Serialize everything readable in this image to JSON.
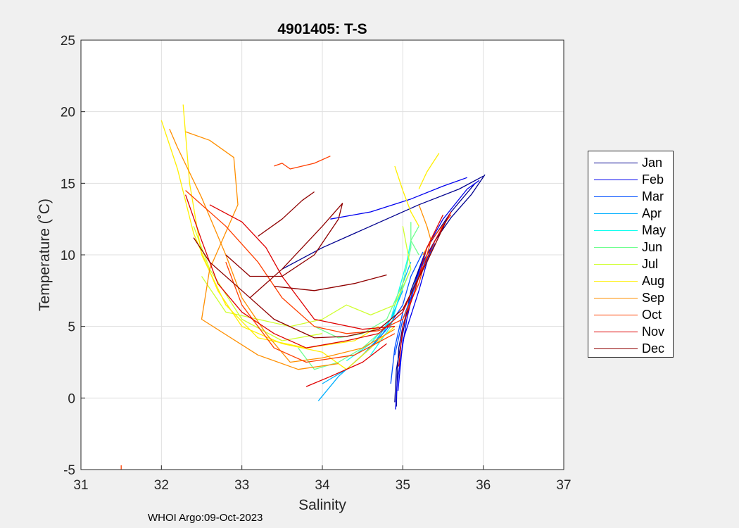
{
  "chart_data": {
    "type": "line",
    "title": "4901405:  T-S",
    "xlabel": "Salinity",
    "ylabel": "Temperature (˚C)",
    "xlim": [
      31,
      37
    ],
    "ylim": [
      -5,
      25
    ],
    "xticks": [
      "31",
      "32",
      "33",
      "34",
      "35",
      "36",
      "37"
    ],
    "yticks": [
      "-5",
      "0",
      "5",
      "10",
      "15",
      "20",
      "25"
    ],
    "grid": true,
    "legend_position": "right-outside",
    "footer": "WHOI Argo:09-Oct-2023",
    "series": [
      {
        "name": "Jan",
        "color": "#00008f",
        "profiles": [
          [
            [
              34.92,
              -0.6
            ],
            [
              34.93,
              1.5
            ],
            [
              34.95,
              3.5
            ],
            [
              35.0,
              5.0
            ],
            [
              35.1,
              7.0
            ],
            [
              35.2,
              9.0
            ],
            [
              35.4,
              11.0
            ],
            [
              35.6,
              12.6
            ],
            [
              35.85,
              14.2
            ],
            [
              36.02,
              15.6
            ]
          ],
          [
            [
              34.9,
              -0.3
            ],
            [
              34.92,
              2.0
            ],
            [
              35.0,
              4.5
            ],
            [
              35.1,
              7.5
            ],
            [
              35.3,
              10.5
            ],
            [
              35.6,
              13.0
            ],
            [
              35.9,
              15.0
            ]
          ],
          [
            [
              33.5,
              9.0
            ],
            [
              34.0,
              10.5
            ],
            [
              34.6,
              12.0
            ],
            [
              35.2,
              13.5
            ],
            [
              35.7,
              14.6
            ],
            [
              36.0,
              15.5
            ]
          ]
        ]
      },
      {
        "name": "Feb",
        "color": "#0000ef",
        "profiles": [
          [
            [
              34.91,
              -0.8
            ],
            [
              34.93,
              1.0
            ],
            [
              34.98,
              3.0
            ],
            [
              35.05,
              5.5
            ],
            [
              35.15,
              8.0
            ],
            [
              35.3,
              10.5
            ],
            [
              35.5,
              12.5
            ],
            [
              35.8,
              14.6
            ],
            [
              35.95,
              15.2
            ]
          ],
          [
            [
              34.1,
              12.5
            ],
            [
              34.6,
              13.0
            ],
            [
              35.1,
              13.9
            ],
            [
              35.5,
              14.8
            ],
            [
              35.8,
              15.4
            ]
          ],
          [
            [
              34.94,
              0.5
            ],
            [
              35.0,
              4.0
            ],
            [
              35.2,
              7.5
            ],
            [
              35.35,
              10.5
            ]
          ]
        ]
      },
      {
        "name": "Mar",
        "color": "#004fff",
        "profiles": [
          [
            [
              34.4,
              2.5
            ],
            [
              34.6,
              3.5
            ],
            [
              34.8,
              4.8
            ],
            [
              35.0,
              6.5
            ],
            [
              35.1,
              8.5
            ],
            [
              35.25,
              10.2
            ]
          ],
          [
            [
              34.85,
              1.0
            ],
            [
              34.9,
              3.5
            ],
            [
              35.0,
              6.0
            ],
            [
              35.15,
              8.0
            ],
            [
              35.3,
              10.0
            ]
          ],
          [
            [
              34.9,
              3.0
            ],
            [
              35.0,
              5.5
            ],
            [
              35.2,
              8.5
            ],
            [
              35.4,
              10.8
            ]
          ]
        ]
      },
      {
        "name": "Apr",
        "color": "#00afff",
        "profiles": [
          [
            [
              33.95,
              -0.2
            ],
            [
              34.2,
              1.5
            ],
            [
              34.5,
              3.0
            ],
            [
              34.75,
              4.5
            ],
            [
              34.9,
              6.0
            ],
            [
              35.0,
              8.0
            ],
            [
              35.1,
              9.5
            ]
          ],
          [
            [
              34.0,
              1.0
            ],
            [
              34.3,
              2.0
            ],
            [
              34.6,
              3.5
            ],
            [
              34.85,
              5.5
            ],
            [
              35.0,
              7.5
            ]
          ]
        ]
      },
      {
        "name": "May",
        "color": "#10ffef",
        "profiles": [
          [
            [
              34.3,
              2.6
            ],
            [
              34.6,
              3.8
            ],
            [
              34.85,
              5.5
            ],
            [
              34.95,
              7.5
            ],
            [
              35.05,
              9.5
            ],
            [
              35.1,
              11.0
            ]
          ],
          [
            [
              34.6,
              3.0
            ],
            [
              34.85,
              5.0
            ],
            [
              34.95,
              7.0
            ],
            [
              35.1,
              9.0
            ]
          ]
        ]
      },
      {
        "name": "Jun",
        "color": "#6fff8f",
        "profiles": [
          [
            [
              33.9,
              5.0
            ],
            [
              34.2,
              4.2
            ],
            [
              34.5,
              4.5
            ],
            [
              34.8,
              5.5
            ],
            [
              35.0,
              8.0
            ],
            [
              35.1,
              10.5
            ],
            [
              35.1,
              12.3
            ]
          ],
          [
            [
              33.7,
              3.5
            ],
            [
              33.9,
              2.0
            ],
            [
              34.2,
              2.5
            ],
            [
              34.5,
              3.5
            ],
            [
              34.8,
              5.0
            ]
          ],
          [
            [
              35.2,
              12.0
            ],
            [
              35.1,
              11.0
            ],
            [
              35.2,
              10.0
            ]
          ]
        ]
      },
      {
        "name": "Jul",
        "color": "#cfff2f",
        "profiles": [
          [
            [
              32.5,
              8.5
            ],
            [
              32.8,
              6.0
            ],
            [
              33.2,
              5.5
            ],
            [
              33.6,
              5.0
            ],
            [
              34.0,
              5.5
            ],
            [
              34.3,
              6.5
            ],
            [
              34.6,
              5.8
            ],
            [
              34.9,
              6.5
            ],
            [
              35.1,
              9.0
            ],
            [
              35.0,
              12.0
            ]
          ],
          [
            [
              32.4,
              12.0
            ],
            [
              32.6,
              9.0
            ],
            [
              33.0,
              5.5
            ],
            [
              33.5,
              4.0
            ],
            [
              34.0,
              4.5
            ]
          ]
        ]
      },
      {
        "name": "Aug",
        "color": "#ffef00",
        "profiles": [
          [
            [
              32.0,
              19.4
            ],
            [
              32.2,
              16.0
            ],
            [
              32.4,
              11.5
            ],
            [
              32.7,
              7.5
            ],
            [
              33.0,
              5.0
            ],
            [
              33.5,
              3.8
            ],
            [
              34.0,
              3.2
            ],
            [
              34.3,
              2.0
            ],
            [
              34.6,
              3.5
            ],
            [
              34.9,
              5.0
            ]
          ],
          [
            [
              32.27,
              20.5
            ],
            [
              32.35,
              15.0
            ],
            [
              32.5,
              10.0
            ],
            [
              32.8,
              6.5
            ],
            [
              33.2,
              4.2
            ],
            [
              33.8,
              3.5
            ],
            [
              34.4,
              4.0
            ],
            [
              34.7,
              5.0
            ]
          ],
          [
            [
              34.9,
              16.2
            ],
            [
              35.0,
              14.5
            ],
            [
              35.1,
              13.0
            ],
            [
              35.2,
              12.0
            ]
          ],
          [
            [
              35.2,
              14.6
            ],
            [
              35.3,
              15.8
            ],
            [
              35.45,
              17.1
            ]
          ]
        ]
      },
      {
        "name": "Sep",
        "color": "#ff8f00",
        "profiles": [
          [
            [
              32.1,
              18.8
            ],
            [
              32.2,
              17.5
            ],
            [
              32.5,
              14.0
            ],
            [
              32.8,
              10.0
            ],
            [
              33.0,
              7.0
            ],
            [
              33.3,
              4.5
            ],
            [
              33.6,
              2.5
            ],
            [
              34.0,
              2.8
            ],
            [
              34.5,
              3.5
            ],
            [
              34.9,
              4.8
            ]
          ],
          [
            [
              32.3,
              18.6
            ],
            [
              32.6,
              18.0
            ],
            [
              32.9,
              16.8
            ],
            [
              32.95,
              13.5
            ],
            [
              32.6,
              9.0
            ],
            [
              32.5,
              5.5
            ],
            [
              33.2,
              3.0
            ],
            [
              33.7,
              2.0
            ],
            [
              34.2,
              2.4
            ]
          ],
          [
            [
              35.2,
              13.5
            ],
            [
              35.3,
              12.0
            ],
            [
              35.35,
              11.0
            ],
            [
              35.25,
              10.0
            ]
          ]
        ]
      },
      {
        "name": "Oct",
        "color": "#ff3f00",
        "profiles": [
          [
            [
              33.4,
              16.2
            ],
            [
              33.5,
              16.4
            ],
            [
              33.6,
              16.0
            ],
            [
              33.9,
              16.4
            ],
            [
              34.1,
              16.9
            ]
          ],
          [
            [
              32.3,
              14.5
            ],
            [
              32.8,
              12.0
            ],
            [
              33.2,
              9.5
            ],
            [
              33.5,
              7.0
            ],
            [
              33.9,
              5.0
            ],
            [
              34.3,
              4.5
            ],
            [
              34.7,
              4.7
            ],
            [
              35.0,
              5.5
            ],
            [
              35.2,
              8.0
            ],
            [
              35.35,
              11.0
            ],
            [
              35.6,
              12.8
            ]
          ],
          [
            [
              31.5,
              -4.7
            ],
            [
              31.5,
              -5.0
            ]
          ],
          [
            [
              32.8,
              9.5
            ],
            [
              33.0,
              6.5
            ],
            [
              33.4,
              3.5
            ],
            [
              33.8,
              2.5
            ],
            [
              34.4,
              3.0
            ],
            [
              34.9,
              4.5
            ]
          ]
        ]
      },
      {
        "name": "Nov",
        "color": "#df0000",
        "profiles": [
          [
            [
              32.3,
              14.2
            ],
            [
              32.5,
              11.0
            ],
            [
              32.7,
              8.0
            ],
            [
              33.0,
              6.0
            ],
            [
              33.4,
              4.5
            ],
            [
              33.8,
              3.5
            ],
            [
              34.3,
              4.0
            ],
            [
              34.7,
              4.5
            ],
            [
              35.0,
              6.0
            ],
            [
              35.2,
              8.5
            ],
            [
              35.4,
              11.0
            ],
            [
              35.6,
              13.0
            ]
          ],
          [
            [
              32.6,
              13.5
            ],
            [
              33.0,
              12.3
            ],
            [
              33.3,
              10.5
            ],
            [
              33.5,
              8.5
            ],
            [
              33.9,
              5.5
            ],
            [
              34.5,
              4.8
            ],
            [
              34.9,
              5.0
            ]
          ],
          [
            [
              34.95,
              2.2
            ],
            [
              35.0,
              5.0
            ],
            [
              35.15,
              7.5
            ],
            [
              35.3,
              10.5
            ],
            [
              35.5,
              12.8
            ]
          ],
          [
            [
              33.8,
              0.8
            ],
            [
              34.1,
              1.5
            ],
            [
              34.5,
              2.5
            ],
            [
              34.8,
              3.8
            ]
          ]
        ]
      },
      {
        "name": "Dec",
        "color": "#8f0000",
        "profiles": [
          [
            [
              32.4,
              11.2
            ],
            [
              32.6,
              9.5
            ],
            [
              33.0,
              7.5
            ],
            [
              33.4,
              5.5
            ],
            [
              33.9,
              4.2
            ],
            [
              34.3,
              4.3
            ],
            [
              34.7,
              4.8
            ],
            [
              35.0,
              6.2
            ],
            [
              35.3,
              9.5
            ],
            [
              35.55,
              12.5
            ]
          ],
          [
            [
              32.8,
              10.0
            ],
            [
              33.1,
              8.5
            ],
            [
              33.5,
              8.5
            ],
            [
              33.9,
              10.0
            ],
            [
              34.2,
              12.5
            ],
            [
              34.25,
              13.6
            ],
            [
              34.0,
              12.0
            ],
            [
              33.5,
              9.0
            ],
            [
              33.1,
              7.0
            ]
          ],
          [
            [
              33.2,
              11.3
            ],
            [
              33.5,
              12.5
            ],
            [
              33.75,
              13.8
            ],
            [
              33.9,
              14.4
            ]
          ],
          [
            [
              33.4,
              7.8
            ],
            [
              33.9,
              7.5
            ],
            [
              34.4,
              8.0
            ],
            [
              34.8,
              8.6
            ]
          ]
        ]
      }
    ]
  }
}
